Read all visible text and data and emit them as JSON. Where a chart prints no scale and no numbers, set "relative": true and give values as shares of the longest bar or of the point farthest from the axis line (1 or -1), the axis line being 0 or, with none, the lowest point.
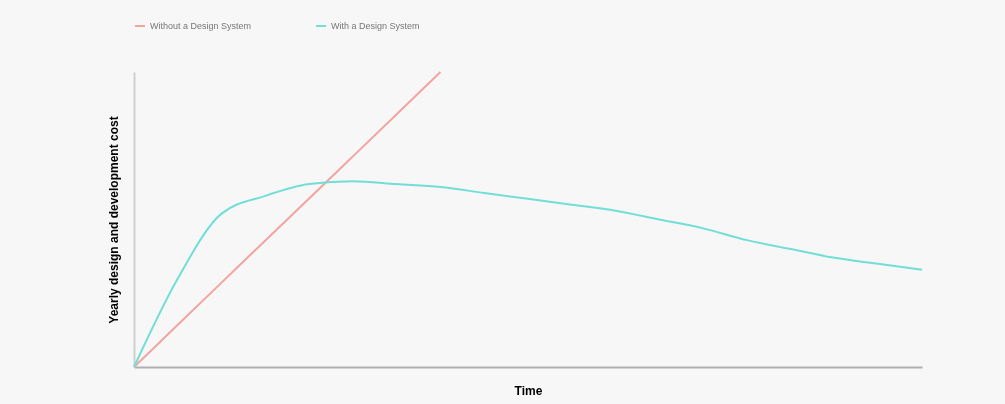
{
  "chart_data": {
    "type": "line",
    "relative": true,
    "xlabel": "Time",
    "ylabel": "Yearly design and development cost",
    "legend": "top",
    "marker": "none",
    "line_style": "solid",
    "categories": [
      null,
      null,
      null,
      null,
      null,
      null,
      null,
      null,
      null,
      null,
      null,
      null,
      null,
      null,
      null,
      null,
      null,
      null,
      null
    ],
    "series": [
      {
        "name": "Without a Design System",
        "color": "#f2a49e",
        "values": [
          0,
          0.143,
          0.286,
          0.429,
          0.571,
          0.714,
          0.857,
          1,
          null,
          null,
          null,
          null,
          null,
          null,
          null,
          null,
          null,
          null,
          null
        ]
      },
      {
        "name": "With a Design System",
        "color": "#72ded5",
        "values": [
          0,
          0.3,
          0.52,
          0.58,
          0.62,
          0.63,
          0.62,
          0.61,
          0.59,
          0.57,
          0.55,
          0.53,
          0.5,
          0.47,
          0.43,
          0.4,
          0.37,
          0.35,
          0.33
        ]
      }
    ]
  }
}
